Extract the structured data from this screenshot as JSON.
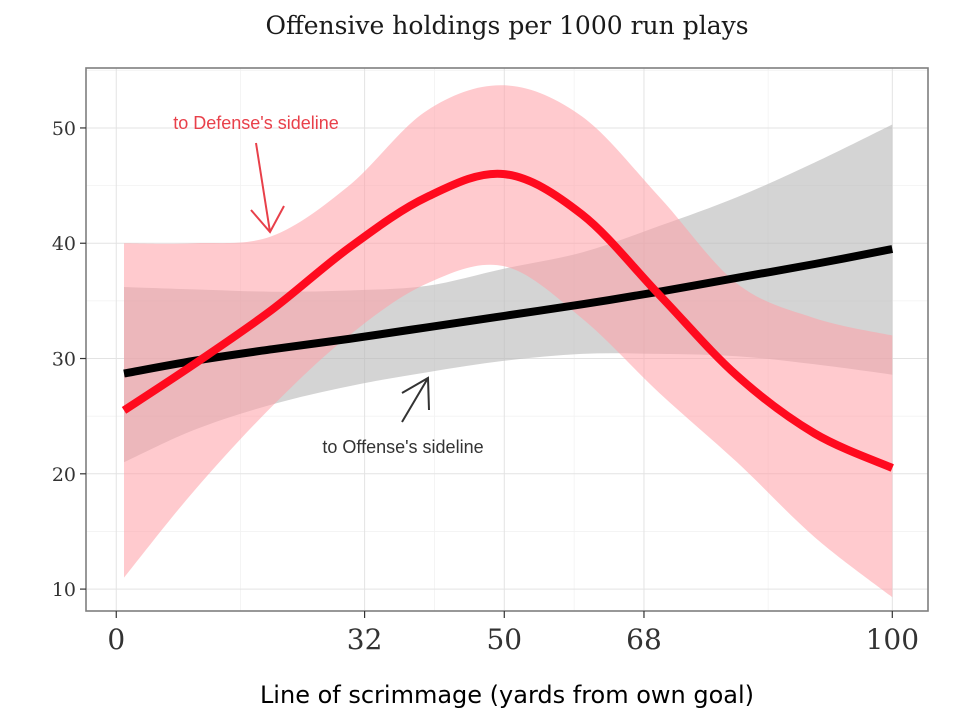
{
  "chart_data": {
    "type": "line",
    "title": "Offensive holdings per 1000 run plays",
    "xlabel": "Line of scrimmage (yards from own goal)",
    "ylabel": "",
    "xlim": [
      -3.9,
      104.6
    ],
    "ylim": [
      8.1,
      55.2
    ],
    "x_ticks": [
      0,
      32,
      50,
      68,
      100
    ],
    "x_tick_labels": [
      "0",
      "32",
      "50",
      "68",
      "100"
    ],
    "y_ticks": [
      10,
      20,
      30,
      40,
      50
    ],
    "y_tick_labels": [
      "10",
      "20",
      "30",
      "40",
      "50"
    ],
    "grid": true,
    "x": [
      1,
      10,
      20,
      30,
      40,
      50,
      60,
      70,
      80,
      90,
      100
    ],
    "series": [
      {
        "color": "#ff0a1e",
        "band_color": "#ff9ea5",
        "values": [
          25.5,
          29.5,
          34.2,
          39.6,
          44.0,
          46.0,
          42.5,
          35.5,
          28.5,
          23.5,
          20.5
        ],
        "lower": [
          11.0,
          18.5,
          25.8,
          32.0,
          36.5,
          38.0,
          33.5,
          27.0,
          21.0,
          14.5,
          9.3
        ],
        "upper": [
          40.0,
          40.0,
          40.6,
          45.0,
          51.5,
          53.7,
          51.0,
          44.0,
          36.5,
          33.5,
          32.0
        ]
      },
      {
        "color": "#000000",
        "band_color": "#b8b8b8",
        "values": [
          28.7,
          29.8,
          30.8,
          31.7,
          32.7,
          33.7,
          34.7,
          35.8,
          37.0,
          38.2,
          39.5
        ],
        "lower": [
          21.0,
          23.8,
          26.0,
          27.6,
          28.8,
          29.8,
          30.4,
          30.4,
          30.2,
          29.5,
          28.6
        ],
        "upper": [
          36.2,
          36.0,
          35.8,
          35.9,
          36.3,
          37.8,
          39.2,
          41.5,
          44.0,
          47.0,
          50.3
        ]
      }
    ],
    "annotations": [
      {
        "text": "to Defense's sideline",
        "color": "#e8404a",
        "arrow_color": "#e8404a"
      },
      {
        "text": "to Offense's sideline",
        "color": "#333333",
        "arrow_color": "#333333"
      }
    ]
  }
}
